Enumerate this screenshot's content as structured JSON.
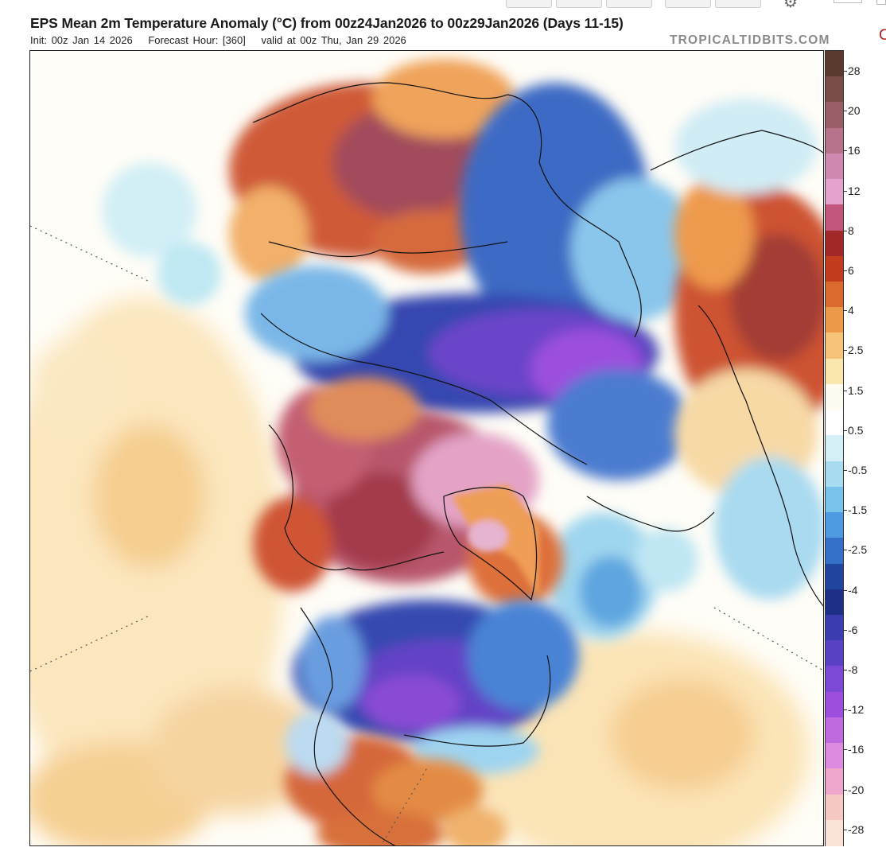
{
  "header": {
    "title": "EPS Mean 2m Temperature Anomaly (°C) from 00z24Jan2026 to 00z29Jan2026 (Days 11-15)",
    "init": "Init: 00z Jan 14 2026",
    "forecast_hour": "Forecast Hour: [360]",
    "valid": "valid at 00z Thu, Jan 29 2026",
    "brand": "TROPICALTIDBITS.COM",
    "edge_letter": "C"
  },
  "map": {
    "projection": "polar stereographic (Northern Hemisphere)",
    "variable": "2m temperature anomaly",
    "units": "°C"
  },
  "colorbar": {
    "labels": [
      "28",
      "20",
      "16",
      "12",
      "8",
      "6",
      "4",
      "2.5",
      "1.5",
      "0.5",
      "-0.5",
      "-1.5",
      "-2.5",
      "-4",
      "-6",
      "-8",
      "-12",
      "-16",
      "-20",
      "-28"
    ],
    "colors": [
      "#5a3a2e",
      "#7a4c48",
      "#9a5e68",
      "#b8738c",
      "#d08ab2",
      "#e6a2cf",
      "#c2557c",
      "#a02828",
      "#c43c1e",
      "#db6a2e",
      "#ec9a4a",
      "#f5c478",
      "#fae7ae",
      "#fefcf0",
      "#fefefe",
      "#d4f0f6",
      "#a8dcf0",
      "#78c2ec",
      "#4f9be2",
      "#3470c8",
      "#21449e",
      "#1d2f86",
      "#3b3cb0",
      "#5a41c4",
      "#7c48d6",
      "#9b4fdc",
      "#c06ae0",
      "#dd8ae0",
      "#eea6cc",
      "#f7c9c2",
      "#fbe2d8"
    ]
  }
}
